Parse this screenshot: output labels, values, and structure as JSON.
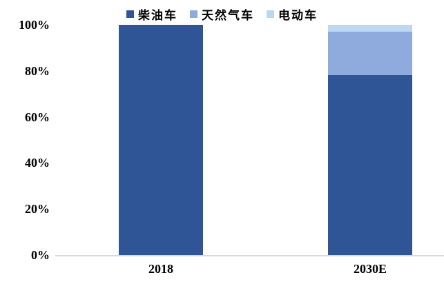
{
  "chart_data": {
    "type": "bar",
    "stacked": true,
    "orientation": "vertical",
    "title": "",
    "xlabel": "",
    "ylabel": "",
    "categories": [
      "2018",
      "2030E"
    ],
    "series": [
      {
        "name": "柴油车",
        "color": "#2F5597",
        "values": [
          100,
          78
        ]
      },
      {
        "name": "天然气车",
        "color": "#8FAADC",
        "values": [
          0,
          19
        ]
      },
      {
        "name": "电动车",
        "color": "#BDD7EE",
        "values": [
          0,
          3
        ]
      }
    ],
    "ylim": [
      0,
      100
    ],
    "y_ticks": [
      {
        "value": 0,
        "label": "0%"
      },
      {
        "value": 20,
        "label": "20%"
      },
      {
        "value": 40,
        "label": "40%"
      },
      {
        "value": 60,
        "label": "60%"
      },
      {
        "value": 80,
        "label": "80%"
      },
      {
        "value": 100,
        "label": "100%"
      }
    ],
    "grid": false,
    "legend_position": "top-center",
    "axis_line_color": "#d9d9d9",
    "background_color": "#ffffff",
    "text_color": "#000000"
  }
}
